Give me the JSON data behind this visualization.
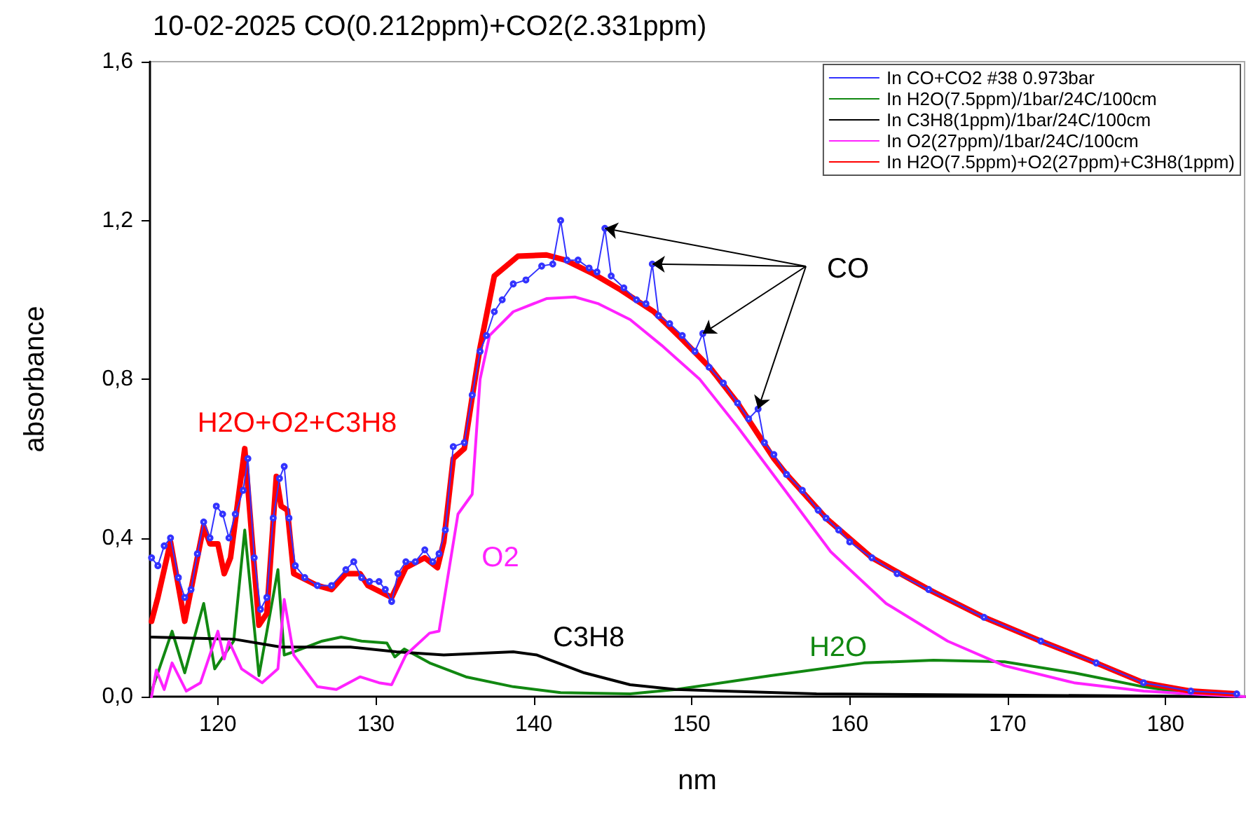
{
  "chart_data": {
    "type": "line",
    "title": "10-02-2025 CO(0.212ppm)+CO2(2.331ppm)",
    "xlabel": "nm",
    "ylabel": "absorbance",
    "xlim": [
      115.7,
      185
    ],
    "xticks": [
      120,
      130,
      140,
      150,
      160,
      170,
      180
    ],
    "ylim": [
      0,
      1.6
    ],
    "yticks": [
      {
        "value": 0,
        "label": "0,0"
      },
      {
        "value": 0.4,
        "label": "0,4"
      },
      {
        "value": 0.8,
        "label": "0,8"
      },
      {
        "value": 1.2,
        "label": "1,2"
      },
      {
        "value": 1.6,
        "label": "1,6"
      }
    ],
    "grid": false,
    "legend": "top right",
    "line_style": "solid",
    "series": [
      {
        "name": "In CO+CO2 #38 0.973bar",
        "color": "#3333ff",
        "marker": "circle",
        "x": [
          115.8,
          116.2,
          116.6,
          117.0,
          117.5,
          117.9,
          118.3,
          118.7,
          119.1,
          119.5,
          119.9,
          120.3,
          120.7,
          121.1,
          121.6,
          121.9,
          122.3,
          122.7,
          123.1,
          123.5,
          123.9,
          124.2,
          124.5,
          124.9,
          125.5,
          126.3,
          127.2,
          128.1,
          128.6,
          129.1,
          129.6,
          130.2,
          130.6,
          131.0,
          131.4,
          131.9,
          132.5,
          133.1,
          133.6,
          134.0,
          134.4,
          134.9,
          135.6,
          136.1,
          136.6,
          137.0,
          137.5,
          138.0,
          138.7,
          139.5,
          140.5,
          141.2,
          141.7,
          142.1,
          142.8,
          143.5,
          144.0,
          144.5,
          144.9,
          145.7,
          146.5,
          147.1,
          147.5,
          147.9,
          148.6,
          149.4,
          150.2,
          150.7,
          151.1,
          152.0,
          152.9,
          153.6,
          154.2,
          154.6,
          155.2,
          156.0,
          157.0,
          158.0,
          158.5,
          159.3,
          160.0,
          161.4,
          163.0,
          165.0,
          168.5,
          172.1,
          175.6,
          178.6,
          181.6,
          184.5
        ],
        "values": [
          0.35,
          0.33,
          0.38,
          0.4,
          0.3,
          0.25,
          0.27,
          0.36,
          0.44,
          0.4,
          0.48,
          0.46,
          0.4,
          0.46,
          0.52,
          0.6,
          0.35,
          0.22,
          0.25,
          0.45,
          0.55,
          0.58,
          0.45,
          0.33,
          0.3,
          0.28,
          0.28,
          0.32,
          0.34,
          0.3,
          0.29,
          0.29,
          0.27,
          0.24,
          0.31,
          0.34,
          0.34,
          0.37,
          0.34,
          0.36,
          0.42,
          0.63,
          0.64,
          0.76,
          0.87,
          0.91,
          0.97,
          1.0,
          1.04,
          1.05,
          1.085,
          1.09,
          1.2,
          1.1,
          1.1,
          1.08,
          1.07,
          1.18,
          1.06,
          1.03,
          1.0,
          0.99,
          1.09,
          0.96,
          0.94,
          0.91,
          0.87,
          0.915,
          0.83,
          0.79,
          0.74,
          0.7,
          0.725,
          0.64,
          0.61,
          0.56,
          0.52,
          0.47,
          0.45,
          0.42,
          0.39,
          0.35,
          0.31,
          0.27,
          0.2,
          0.14,
          0.085,
          0.035,
          0.014,
          0.007
        ]
      },
      {
        "name": "In H2O(7.5ppm)/1bar/24C/100cm",
        "color": "#118811",
        "marker": "none",
        "x": [
          115.8,
          117.1,
          117.9,
          119.1,
          119.8,
          121.0,
          121.7,
          122.6,
          123.8,
          124.2,
          124.8,
          126.6,
          127.8,
          129.1,
          130.7,
          131.2,
          131.8,
          133.4,
          135.7,
          138.7,
          141.7,
          146.1,
          149.0,
          155.0,
          160.9,
          165.3,
          169.8,
          174.2,
          178.6,
          181.6,
          185.0
        ],
        "values": [
          0.014,
          0.165,
          0.06,
          0.235,
          0.07,
          0.14,
          0.42,
          0.053,
          0.32,
          0.105,
          0.113,
          0.14,
          0.15,
          0.14,
          0.135,
          0.1,
          0.12,
          0.085,
          0.05,
          0.025,
          0.01,
          0.007,
          0.018,
          0.053,
          0.085,
          0.092,
          0.088,
          0.06,
          0.025,
          0.007,
          0.0
        ]
      },
      {
        "name": "In C3H8(1ppm)/1bar/24C/100cm",
        "color": "#000000",
        "marker": "none",
        "x": [
          115.8,
          121.0,
          124.0,
          128.4,
          131.3,
          134.3,
          138.7,
          140.2,
          143.2,
          146.1,
          149.0,
          157.9,
          185.0
        ],
        "values": [
          0.15,
          0.145,
          0.125,
          0.125,
          0.113,
          0.105,
          0.113,
          0.105,
          0.06,
          0.03,
          0.018,
          0.007,
          0.0
        ]
      },
      {
        "name": "In O2(27ppm)/1bar/24C/100cm",
        "color": "#ff22ff",
        "marker": "none",
        "x": [
          115.8,
          116.1,
          116.6,
          117.1,
          118.0,
          118.9,
          120.0,
          120.4,
          120.7,
          121.5,
          122.8,
          123.8,
          124.2,
          124.8,
          126.3,
          127.5,
          129.0,
          130.2,
          131.0,
          131.9,
          133.4,
          134.0,
          135.2,
          136.1,
          136.6,
          137.2,
          138.7,
          140.8,
          142.6,
          144.1,
          146.1,
          148.1,
          150.5,
          152.9,
          155.9,
          158.8,
          162.3,
          166.2,
          169.8,
          174.2,
          178.6,
          181.6,
          185.0
        ],
        "values": [
          0.0,
          0.067,
          0.018,
          0.085,
          0.014,
          0.035,
          0.165,
          0.095,
          0.14,
          0.07,
          0.035,
          0.07,
          0.245,
          0.105,
          0.025,
          0.018,
          0.05,
          0.035,
          0.03,
          0.105,
          0.16,
          0.165,
          0.46,
          0.51,
          0.8,
          0.91,
          0.97,
          1.003,
          1.007,
          0.99,
          0.95,
          0.885,
          0.8,
          0.68,
          0.52,
          0.365,
          0.235,
          0.14,
          0.078,
          0.035,
          0.014,
          0.007,
          0.0
        ]
      },
      {
        "name": "In H2O(7.5ppm)+O2(27ppm)+C3H8(1ppm)",
        "color": "#ff0000",
        "marker": "none",
        "x": [
          115.8,
          116.2,
          117.0,
          117.9,
          119.1,
          119.5,
          120.0,
          120.4,
          120.8,
          121.7,
          122.6,
          123.1,
          123.7,
          124.0,
          124.4,
          124.8,
          126.3,
          127.2,
          128.1,
          129.0,
          129.5,
          131.0,
          131.9,
          133.1,
          133.9,
          134.3,
          134.9,
          135.6,
          136.1,
          136.6,
          137.5,
          139.0,
          140.8,
          142.0,
          143.7,
          145.5,
          147.6,
          149.4,
          151.2,
          152.9,
          155.2,
          155.9,
          158.5,
          161.4,
          165.0,
          168.5,
          172.1,
          175.6,
          178.6,
          181.6,
          184.5
        ],
        "values": [
          0.19,
          0.25,
          0.39,
          0.19,
          0.43,
          0.385,
          0.385,
          0.31,
          0.35,
          0.625,
          0.18,
          0.21,
          0.555,
          0.48,
          0.47,
          0.31,
          0.28,
          0.27,
          0.31,
          0.31,
          0.28,
          0.25,
          0.325,
          0.35,
          0.325,
          0.39,
          0.6,
          0.625,
          0.755,
          0.88,
          1.06,
          1.11,
          1.113,
          1.1,
          1.067,
          1.025,
          0.97,
          0.9,
          0.827,
          0.74,
          0.6,
          0.565,
          0.45,
          0.35,
          0.27,
          0.2,
          0.14,
          0.085,
          0.035,
          0.014,
          0.007
        ]
      }
    ],
    "annotations": [
      {
        "text": "CO",
        "x": 144.5,
        "y": 1.18
      },
      "H2O",
      "C3H8",
      "O2",
      "H2O+O2+C3H8"
    ]
  }
}
